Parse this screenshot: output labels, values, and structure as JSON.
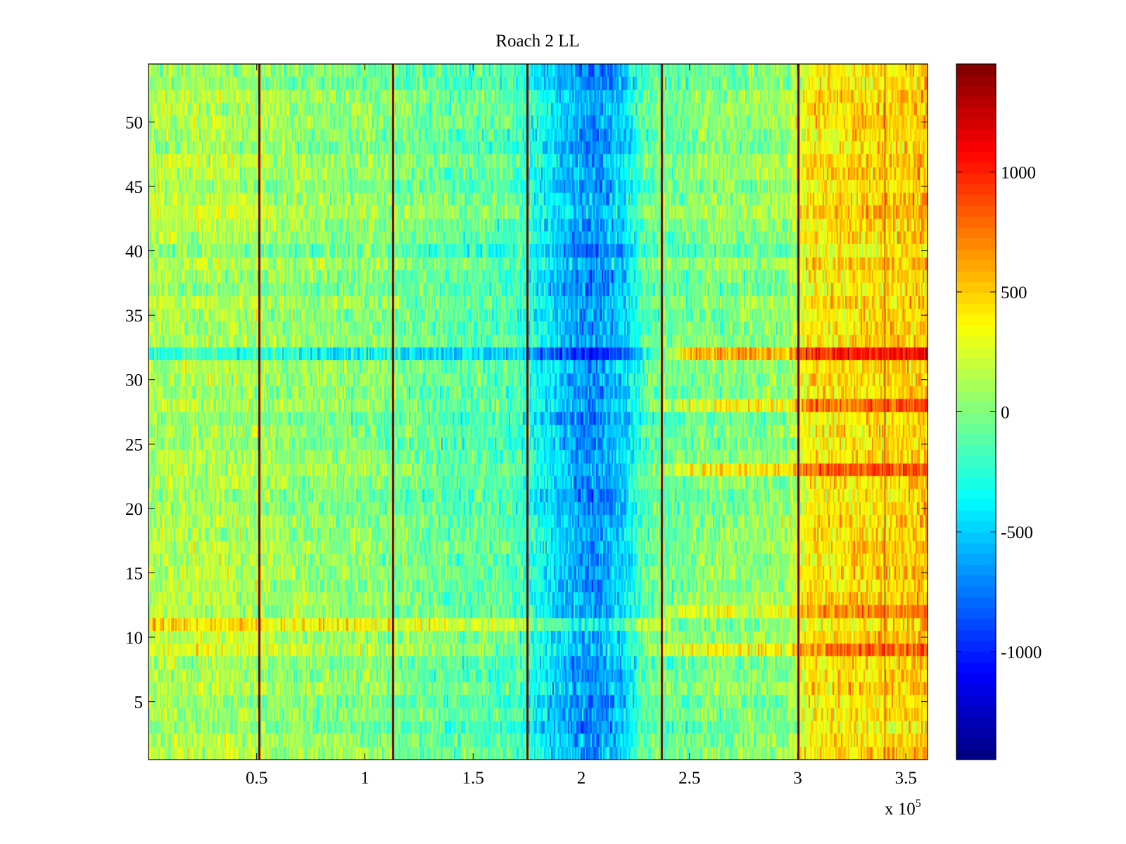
{
  "chart_data": {
    "type": "heatmap",
    "title": "Roach 2 LL",
    "xlabel": "",
    "ylabel": "",
    "x_multiplier_label": "x 10",
    "x_multiplier_exponent": "5",
    "xlim": [
      0,
      3.6
    ],
    "ylim": [
      0.5,
      54.5
    ],
    "x_ticks": [
      0.5,
      1,
      1.5,
      2,
      2.5,
      3,
      3.5
    ],
    "x_tick_labels": [
      "0.5",
      "1",
      "1.5",
      "2",
      "2.5",
      "3",
      "3.5"
    ],
    "y_ticks": [
      5,
      10,
      15,
      20,
      25,
      30,
      35,
      40,
      45,
      50
    ],
    "y_tick_labels": [
      "5",
      "10",
      "15",
      "20",
      "25",
      "30",
      "35",
      "40",
      "45",
      "50"
    ],
    "rows": 54,
    "colormap": "jet",
    "clim": [
      -1450,
      1450
    ],
    "colorbar_ticks": [
      -1000,
      -500,
      0,
      500,
      1000
    ],
    "colorbar_tick_labels": [
      "-1000",
      "-500",
      "0",
      "500",
      "1000"
    ],
    "vertical_spike_x": [
      0.51,
      1.13,
      1.75,
      2.37,
      3.0
    ],
    "thin_lines_x": [
      3.4
    ],
    "column_trend": [
      {
        "x": 0.0,
        "value": 120
      },
      {
        "x": 0.4,
        "value": 130
      },
      {
        "x": 0.6,
        "value": 60
      },
      {
        "x": 1.0,
        "value": 20
      },
      {
        "x": 1.3,
        "value": -60
      },
      {
        "x": 1.7,
        "value": -150
      },
      {
        "x": 1.85,
        "value": -420
      },
      {
        "x": 2.05,
        "value": -720
      },
      {
        "x": 2.2,
        "value": -480
      },
      {
        "x": 2.3,
        "value": -80
      },
      {
        "x": 2.6,
        "value": 0
      },
      {
        "x": 2.95,
        "value": 40
      },
      {
        "x": 3.05,
        "value": 380
      },
      {
        "x": 3.35,
        "value": 460
      },
      {
        "x": 3.6,
        "value": 520
      }
    ],
    "row_offsets": [
      {
        "row": 32,
        "value_left": -350,
        "value_right": 550
      },
      {
        "row": 23,
        "value_left": 0,
        "value_right": 350
      },
      {
        "row": 28,
        "value_left": 0,
        "value_right": 300
      },
      {
        "row": 9,
        "value_left": 100,
        "value_right": 300
      },
      {
        "row": 11,
        "value_left": 250,
        "value_right": -100
      },
      {
        "row": 12,
        "value_left": 0,
        "value_right": 250
      }
    ]
  }
}
